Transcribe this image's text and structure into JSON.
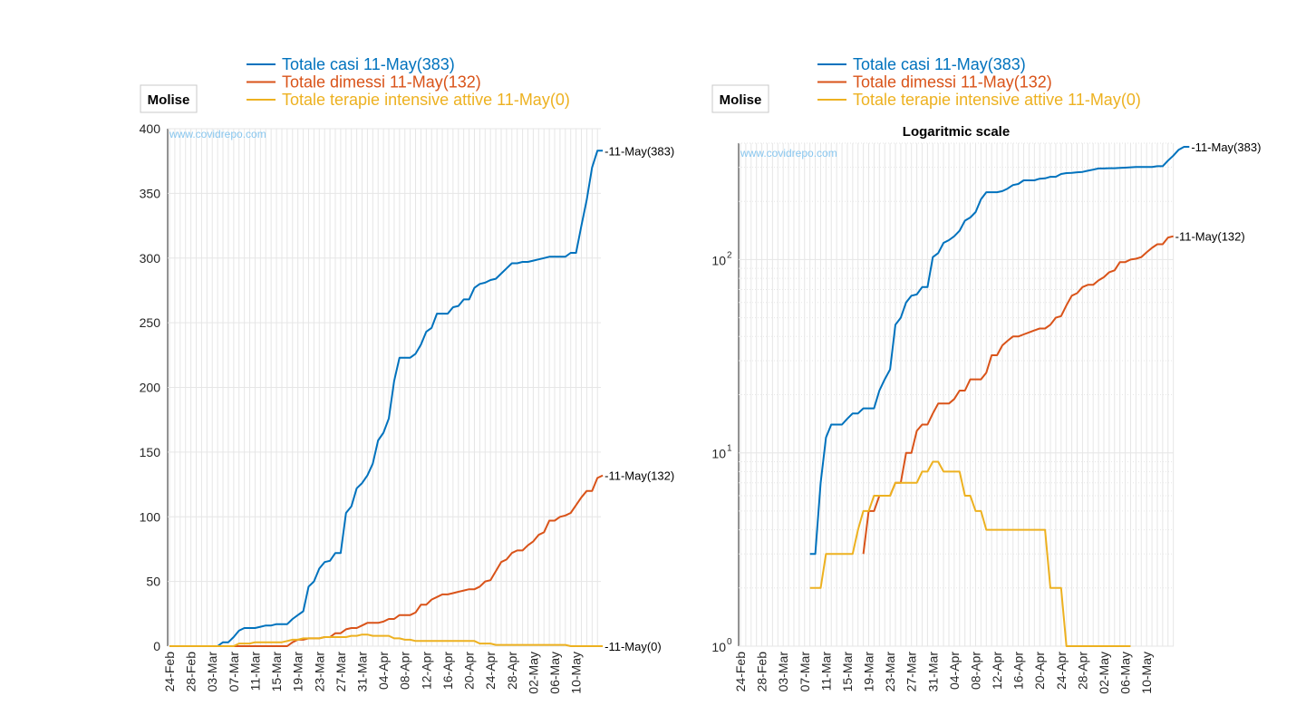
{
  "colors": {
    "casi": "#0072bd",
    "dimessi": "#d95319",
    "terapie": "#edb120",
    "grid": "#e6e6e6",
    "axis": "#262626",
    "watermark": "#88c6ee"
  },
  "chart_data": [
    {
      "type": "line",
      "region_label": "Molise",
      "title": "",
      "watermark": "www.covidrepo.com",
      "ylim": [
        0,
        400
      ],
      "yscale": "linear",
      "y_ticks": [
        "0",
        "50",
        "100",
        "150",
        "200",
        "250",
        "300",
        "350",
        "400"
      ],
      "x_tick_labels": [
        "24-Feb",
        "28-Feb",
        "03-Mar",
        "07-Mar",
        "11-Mar",
        "15-Mar",
        "19-Mar",
        "23-Mar",
        "27-Mar",
        "31-Mar",
        "04-Apr",
        "08-Apr",
        "12-Apr",
        "16-Apr",
        "20-Apr",
        "24-Apr",
        "28-Apr",
        "02-May",
        "06-May",
        "10-May"
      ],
      "grid": true,
      "legend": "top",
      "end_labels": [
        "-11-May(383)",
        "-11-May(132)",
        "-11-May(0)"
      ],
      "series": [
        {
          "name": "Totale casi 11-May(383)",
          "start": "24-Feb",
          "values": [
            0,
            0,
            0,
            0,
            0,
            0,
            0,
            0,
            0,
            0,
            3,
            3,
            7,
            12,
            14,
            14,
            14,
            15,
            16,
            16,
            17,
            17,
            17,
            21,
            24,
            27,
            46,
            50,
            60,
            65,
            66,
            72,
            72,
            103,
            108,
            122,
            126,
            132,
            141,
            159,
            165,
            176,
            205,
            223,
            223,
            223,
            226,
            233,
            243,
            246,
            257,
            257,
            257,
            262,
            263,
            268,
            268,
            277,
            280,
            281,
            283,
            284,
            288,
            292,
            296,
            296,
            297,
            297,
            298,
            299,
            300,
            301,
            301,
            301,
            301,
            304,
            304,
            325,
            345,
            370,
            383,
            383
          ]
        },
        {
          "name": "Totale dimessi 11-May(132)",
          "start": "24-Feb",
          "values": [
            0,
            0,
            0,
            0,
            0,
            0,
            0,
            0,
            0,
            0,
            0,
            0,
            0,
            0,
            0,
            0,
            0,
            0,
            0,
            0,
            0,
            0,
            0,
            3,
            5,
            5,
            6,
            6,
            6,
            7,
            7,
            10,
            10,
            13,
            14,
            14,
            16,
            18,
            18,
            18,
            19,
            21,
            21,
            24,
            24,
            24,
            26,
            32,
            32,
            36,
            38,
            40,
            40,
            41,
            42,
            43,
            44,
            44,
            46,
            50,
            51,
            58,
            65,
            67,
            72,
            74,
            74,
            78,
            81,
            86,
            88,
            97,
            97,
            100,
            101,
            103,
            109,
            115,
            120,
            120,
            130,
            132
          ]
        },
        {
          "name": "Totale terapie intensive attive 11-May(0)",
          "start": "24-Feb",
          "values": [
            0,
            0,
            0,
            0,
            0,
            0,
            0,
            0,
            0,
            0,
            0,
            0,
            0,
            2,
            2,
            2,
            3,
            3,
            3,
            3,
            3,
            3,
            4,
            5,
            5,
            6,
            6,
            6,
            6,
            7,
            7,
            7,
            7,
            7,
            8,
            8,
            9,
            9,
            8,
            8,
            8,
            8,
            6,
            6,
            5,
            5,
            4,
            4,
            4,
            4,
            4,
            4,
            4,
            4,
            4,
            4,
            4,
            4,
            2,
            2,
            2,
            1,
            1,
            1,
            1,
            1,
            1,
            1,
            1,
            1,
            1,
            1,
            1,
            1,
            1,
            0,
            0,
            0,
            0,
            0,
            0,
            0
          ]
        }
      ]
    },
    {
      "type": "line",
      "region_label": "Molise",
      "title": "Logaritmic scale",
      "watermark": "www.covidrepo.com",
      "ylim": [
        1,
        400
      ],
      "yscale": "log",
      "y_ticks": [
        {
          "base": "10",
          "exp": "0"
        },
        {
          "base": "10",
          "exp": "1"
        },
        {
          "base": "10",
          "exp": "2"
        }
      ],
      "x_tick_labels": [
        "24-Feb",
        "28-Feb",
        "03-Mar",
        "07-Mar",
        "11-Mar",
        "15-Mar",
        "19-Mar",
        "23-Mar",
        "27-Mar",
        "31-Mar",
        "04-Apr",
        "08-Apr",
        "12-Apr",
        "16-Apr",
        "20-Apr",
        "24-Apr",
        "28-Apr",
        "02-May",
        "06-May",
        "10-May"
      ],
      "grid": true,
      "legend": "top",
      "end_labels": [
        "-11-May(383)",
        "-11-May(132)"
      ],
      "series": [
        {
          "name": "Totale casi 11-May(383)",
          "start": "08-Mar",
          "values": [
            3,
            3,
            7,
            12,
            14,
            14,
            14,
            15,
            16,
            16,
            17,
            17,
            17,
            21,
            24,
            27,
            46,
            50,
            60,
            65,
            66,
            72,
            72,
            103,
            108,
            122,
            126,
            132,
            141,
            159,
            165,
            176,
            205,
            223,
            223,
            223,
            226,
            233,
            243,
            246,
            257,
            257,
            257,
            262,
            263,
            268,
            268,
            277,
            280,
            281,
            283,
            284,
            288,
            292,
            296,
            296,
            297,
            297,
            298,
            299,
            300,
            301,
            301,
            301,
            301,
            304,
            304,
            325,
            345,
            370,
            383,
            383
          ]
        },
        {
          "name": "Totale dimessi 11-May(132)",
          "start": "18-Mar",
          "values": [
            3,
            5,
            5,
            6,
            6,
            6,
            7,
            7,
            10,
            10,
            13,
            14,
            14,
            16,
            18,
            18,
            18,
            19,
            21,
            21,
            24,
            24,
            24,
            26,
            32,
            32,
            36,
            38,
            40,
            40,
            41,
            42,
            43,
            44,
            44,
            46,
            50,
            51,
            58,
            65,
            67,
            72,
            74,
            74,
            78,
            81,
            86,
            88,
            97,
            97,
            100,
            101,
            103,
            109,
            115,
            120,
            120,
            130,
            132
          ]
        },
        {
          "name": "Totale terapie intensive attive 11-May(0)",
          "start": "08-Mar",
          "values": [
            2,
            2,
            2,
            3,
            3,
            3,
            3,
            3,
            3,
            4,
            5,
            5,
            6,
            6,
            6,
            6,
            7,
            7,
            7,
            7,
            7,
            8,
            8,
            9,
            9,
            8,
            8,
            8,
            8,
            6,
            6,
            5,
            5,
            4,
            4,
            4,
            4,
            4,
            4,
            4,
            4,
            4,
            4,
            4,
            4,
            2,
            2,
            2,
            1,
            1,
            1,
            1,
            1,
            1,
            1,
            1,
            1,
            1,
            1,
            1,
            1
          ]
        }
      ]
    }
  ]
}
